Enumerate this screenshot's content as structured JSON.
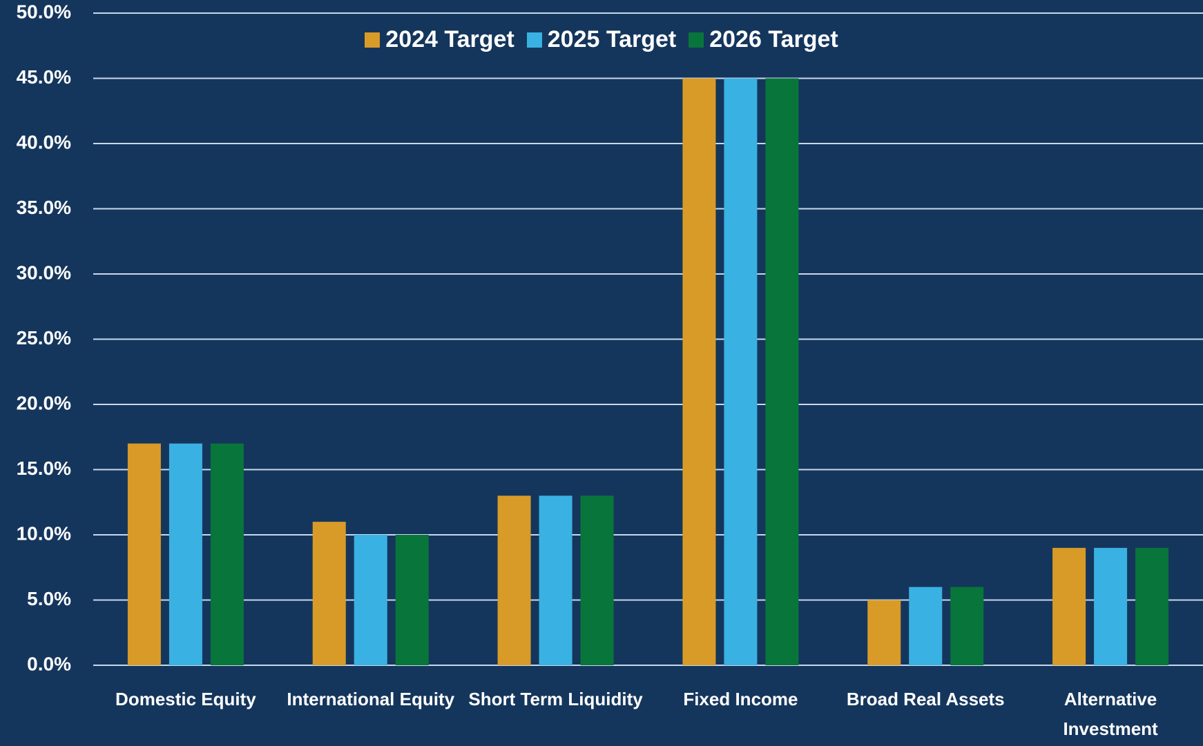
{
  "chart_data": {
    "type": "bar",
    "categories": [
      "Domestic Equity",
      "International Equity",
      "Short Term Liquidity",
      "Fixed Income",
      "Broad Real Assets",
      "Alternative Investment"
    ],
    "series": [
      {
        "name": "2024 Target",
        "color": "#d89b27",
        "values": [
          17,
          11,
          13,
          45,
          5,
          9
        ]
      },
      {
        "name": "2025 Target",
        "color": "#3ab1e3",
        "values": [
          17,
          10,
          13,
          45,
          6,
          9
        ]
      },
      {
        "name": "2026 Target",
        "color": "#08753b",
        "values": [
          17,
          10,
          13,
          45,
          6,
          9
        ]
      }
    ],
    "ylim": [
      0,
      50
    ],
    "yticks": [
      {
        "value": 0,
        "label": "0.0%"
      },
      {
        "value": 5,
        "label": "5.0%"
      },
      {
        "value": 10,
        "label": "10.0%"
      },
      {
        "value": 15,
        "label": "15.0%"
      },
      {
        "value": 20,
        "label": "20.0%"
      },
      {
        "value": 25,
        "label": "25.0%"
      },
      {
        "value": 30,
        "label": "30.0%"
      },
      {
        "value": 35,
        "label": "35.0%"
      },
      {
        "value": 40,
        "label": "40.0%"
      },
      {
        "value": 45,
        "label": "45.0%"
      },
      {
        "value": 50,
        "label": "50.0%"
      }
    ],
    "grid": true,
    "legend": "top"
  }
}
